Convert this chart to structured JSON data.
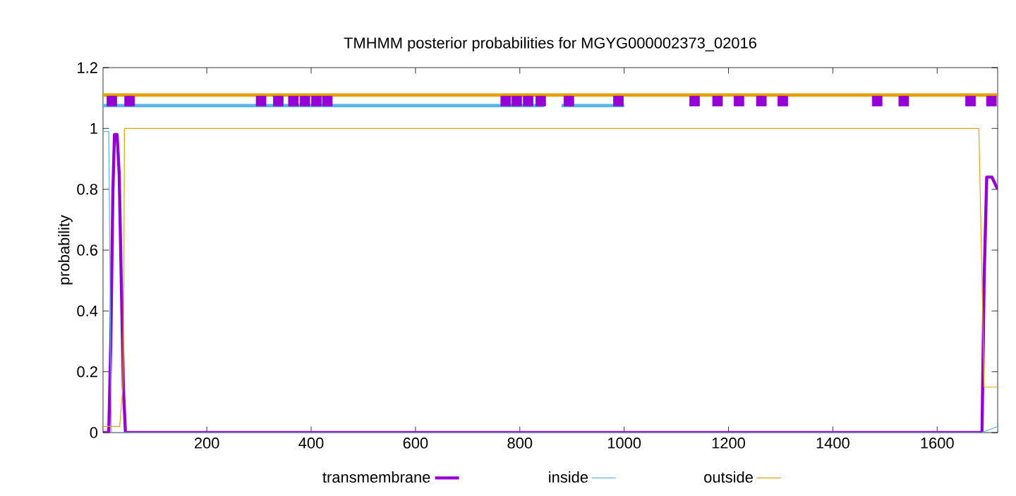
{
  "chart_data": {
    "type": "line",
    "title": "TMHMM posterior probabilities for MGYG000002373_02016",
    "ylabel": "probability",
    "xlim": [
      1,
      1716
    ],
    "ylim": [
      0,
      1.2
    ],
    "xticks": [
      200,
      400,
      600,
      800,
      1000,
      1200,
      1400,
      1600
    ],
    "yticks": [
      0,
      0.2,
      0.4,
      0.6,
      0.8,
      1,
      1.2
    ],
    "legend": "bottom",
    "series": [
      {
        "name": "transmembrane",
        "color": "#9400d3",
        "x": [
          1,
          12,
          16,
          20,
          23,
          28,
          32,
          36,
          40,
          44,
          1686,
          1690,
          1695,
          1705,
          1716
        ],
        "values": [
          0,
          0,
          0.3,
          0.8,
          0.98,
          0.98,
          0.85,
          0.5,
          0.15,
          0,
          0,
          0.5,
          0.84,
          0.84,
          0.8
        ]
      },
      {
        "name": "inside",
        "color": "#56b4e9",
        "x": [
          1,
          12,
          15,
          17,
          44,
          1686,
          1716
        ],
        "values": [
          0.99,
          0.99,
          0.4,
          0,
          0,
          0,
          0.02
        ]
      },
      {
        "name": "outside",
        "color": "#e69f00",
        "x": [
          1,
          33,
          39,
          41,
          42,
          1680,
          1686,
          1690,
          1716
        ],
        "values": [
          0.02,
          0.02,
          0.15,
          0.5,
          1,
          1,
          0.5,
          0.15,
          0.15
        ]
      },
      {
        "color": "#e69f00",
        "x": [
          1,
          1716
        ],
        "values": [
          1.11,
          1.11
        ]
      },
      {
        "color": "#56b4e9",
        "x": [
          1,
          846
        ],
        "values": [
          1.075,
          1.075
        ]
      },
      {
        "color": "#56b4e9",
        "x": [
          880,
          1000
        ],
        "values": [
          1.075,
          1.075
        ]
      },
      {
        "color": "#9400d3",
        "type": "scatter",
        "marker": "square",
        "x": [
          18,
          52,
          304,
          337,
          366,
          388,
          410,
          431,
          773,
          794,
          816,
          840,
          894,
          989,
          1135,
          1179,
          1220,
          1263,
          1304,
          1485,
          1536,
          1664,
          1704
        ],
        "values": [
          1.09,
          1.09,
          1.09,
          1.09,
          1.09,
          1.09,
          1.09,
          1.09,
          1.09,
          1.09,
          1.09,
          1.09,
          1.09,
          1.09,
          1.09,
          1.09,
          1.09,
          1.09,
          1.09,
          1.09,
          1.09,
          1.09,
          1.09
        ]
      }
    ]
  }
}
